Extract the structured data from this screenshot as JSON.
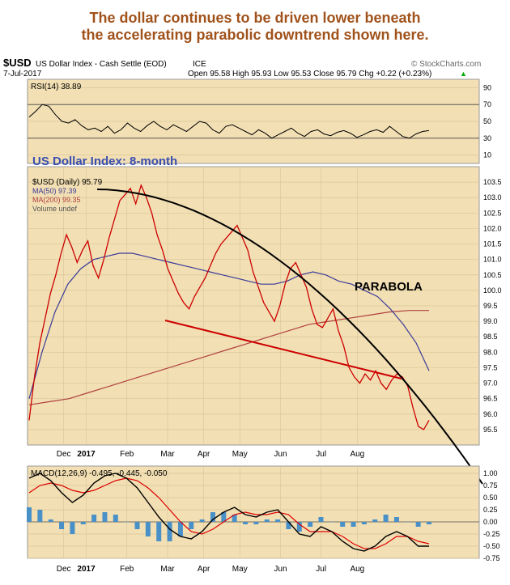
{
  "headline": {
    "line1": "The dollar continues to be driven lower beneath",
    "line2": "the accelerating parabolic downtrend shown here."
  },
  "chart_header": {
    "symbol": "$USD",
    "name": "US Dollar Index - Cash Settle (EOD)",
    "exchange": "ICE",
    "watermark": "© StockCharts.com",
    "date": "7-Jul-2017",
    "ohlc": "Open 95.58  High 95.93  Low 95.53  Close 95.79  Chg +0.22 (+0.23%)",
    "ohlc_arrow": "▲"
  },
  "colors": {
    "panel_bg": "#f2dfb3",
    "price": "#cc0000",
    "ma50": "#3b3b9a",
    "ma200": "#b04040",
    "parabola": "#000000",
    "trendline": "#cc0000",
    "macd": "#000000",
    "signal": "#dd0000",
    "histogram": "#4a90c8",
    "rsi": "#000000"
  },
  "chart_data": [
    {
      "type": "line",
      "panel": "rsi",
      "title": "RSI(14) 38.89",
      "yticks": [
        10,
        30,
        50,
        70,
        90
      ],
      "ylim": [
        0,
        100
      ],
      "series": [
        {
          "name": "RSI(14)",
          "values": [
            55,
            62,
            70,
            68,
            58,
            50,
            48,
            52,
            45,
            40,
            42,
            38,
            44,
            36,
            40,
            48,
            42,
            38,
            45,
            50,
            44,
            40,
            46,
            42,
            38,
            44,
            50,
            48,
            40,
            36,
            44,
            46,
            42,
            38,
            34,
            40,
            36,
            30,
            34,
            38,
            42,
            36,
            32,
            38,
            40,
            35,
            33,
            37,
            39,
            36,
            31,
            34,
            38,
            40,
            37,
            44,
            38,
            32,
            30,
            35,
            38,
            39
          ]
        }
      ]
    },
    {
      "type": "line",
      "panel": "price",
      "title": "US Dollar Index: 8-month",
      "legend": [
        "$USD (Daily) 95.79",
        "MA(50) 97.39",
        "MA(200) 99.35",
        "Volume undef"
      ],
      "annotation": "PARABOLA",
      "ylim": [
        95,
        104
      ],
      "yticks": [
        95.5,
        96.0,
        96.5,
        97.0,
        97.5,
        98.0,
        98.5,
        99.0,
        99.5,
        100.0,
        100.5,
        101.0,
        101.5,
        102.0,
        102.5,
        103.0,
        103.5
      ],
      "xlabels": [
        "Dec",
        "2017",
        "Feb",
        "Mar",
        "Apr",
        "May",
        "Jun",
        "Jul",
        "Aug"
      ],
      "xlabel_pos": [
        0.08,
        0.13,
        0.22,
        0.31,
        0.39,
        0.47,
        0.56,
        0.65,
        0.73
      ],
      "series": [
        {
          "name": "$USD (Daily) 95.79",
          "values": [
            95.8,
            97.2,
            98.3,
            99.1,
            99.9,
            100.5,
            101.2,
            101.8,
            101.4,
            100.9,
            101.3,
            101.6,
            100.8,
            100.4,
            101.0,
            101.7,
            102.3,
            102.9,
            103.1,
            103.3,
            102.8,
            103.4,
            103.0,
            102.5,
            101.8,
            101.3,
            100.7,
            100.3,
            99.9,
            99.6,
            99.4,
            99.8,
            100.1,
            100.4,
            100.8,
            101.2,
            101.5,
            101.7,
            101.9,
            102.1,
            101.7,
            101.3,
            100.6,
            100.1,
            99.6,
            99.3,
            99.0,
            99.5,
            100.2,
            100.7,
            100.9,
            100.5,
            100.1,
            99.4,
            98.9,
            98.8,
            99.1,
            99.4,
            98.7,
            98.2,
            97.5,
            97.2,
            97.0,
            97.3,
            97.1,
            97.4,
            97.0,
            96.8,
            97.1,
            97.3,
            97.2,
            96.9,
            96.2,
            95.6,
            95.5,
            95.8
          ]
        },
        {
          "name": "MA(50) 97.39",
          "values": [
            96.5,
            98.0,
            99.3,
            100.2,
            100.7,
            101.0,
            101.1,
            101.2,
            101.2,
            101.1,
            101.0,
            100.9,
            100.8,
            100.7,
            100.6,
            100.5,
            100.4,
            100.3,
            100.2,
            100.2,
            100.3,
            100.5,
            100.6,
            100.5,
            100.3,
            100.2,
            100.0,
            99.8,
            99.4,
            98.9,
            98.3,
            97.4
          ]
        },
        {
          "name": "MA(200) 99.35",
          "values": [
            96.3,
            96.4,
            96.5,
            96.7,
            96.9,
            97.1,
            97.3,
            97.5,
            97.7,
            97.9,
            98.1,
            98.3,
            98.5,
            98.7,
            98.9,
            99.0,
            99.1,
            99.2,
            99.3,
            99.35,
            99.35
          ]
        }
      ]
    },
    {
      "type": "line",
      "panel": "macd",
      "title": "MACD(12,26,9) -0.495, -0.445, -0.050",
      "ylim": [
        -0.75,
        1.15
      ],
      "yticks": [
        -0.75,
        -0.5,
        -0.25,
        0.0,
        0.25,
        0.5,
        0.75,
        1.0
      ],
      "xlabels": [
        "Dec",
        "2017",
        "Feb",
        "Mar",
        "Apr",
        "May",
        "Jun",
        "Jul",
        "Aug"
      ],
      "series": [
        {
          "name": "MACD",
          "values": [
            0.9,
            1.0,
            0.85,
            0.6,
            0.4,
            0.55,
            0.8,
            0.95,
            1.0,
            0.9,
            0.7,
            0.4,
            0.1,
            -0.15,
            -0.3,
            -0.35,
            -0.2,
            0.05,
            0.2,
            0.3,
            0.15,
            0.1,
            0.2,
            0.25,
            0.0,
            -0.25,
            -0.3,
            -0.1,
            -0.2,
            -0.4,
            -0.55,
            -0.6,
            -0.5,
            -0.3,
            -0.2,
            -0.3,
            -0.5,
            -0.5
          ]
        },
        {
          "name": "Signal",
          "values": [
            0.6,
            0.75,
            0.8,
            0.75,
            0.65,
            0.6,
            0.65,
            0.75,
            0.85,
            0.9,
            0.85,
            0.7,
            0.5,
            0.25,
            0.0,
            -0.2,
            -0.25,
            -0.15,
            0.0,
            0.15,
            0.2,
            0.15,
            0.15,
            0.2,
            0.15,
            -0.05,
            -0.2,
            -0.2,
            -0.2,
            -0.3,
            -0.45,
            -0.55,
            -0.55,
            -0.45,
            -0.3,
            -0.3,
            -0.4,
            -0.45
          ]
        }
      ]
    }
  ]
}
